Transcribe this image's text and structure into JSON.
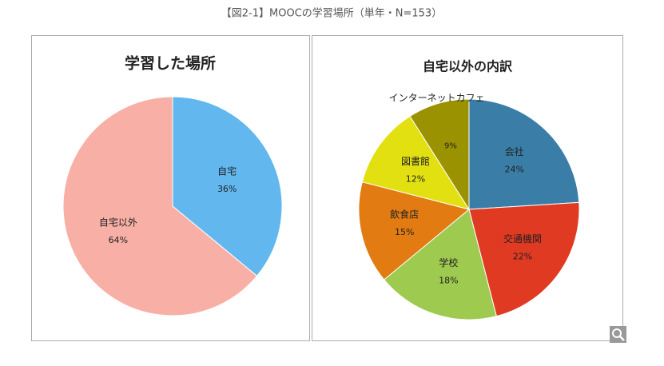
{
  "header": {
    "title": "【図2-1】MOOCの学習場所（単年・N=153）"
  },
  "chart_data": [
    {
      "type": "pie",
      "title": "学習した場所",
      "categories": [
        "自宅",
        "自宅以外"
      ],
      "values": [
        36,
        64
      ],
      "value_labels": [
        "36%",
        "64%"
      ],
      "colors": [
        "#62b8ee",
        "#f8b0a6"
      ]
    },
    {
      "type": "pie",
      "title": "自宅以外の内訳",
      "categories": [
        "会社",
        "交通機関",
        "学校",
        "飲食店",
        "図書館",
        "インターネットカフェ"
      ],
      "values": [
        24,
        22,
        18,
        15,
        12,
        9
      ],
      "value_labels": [
        "24%",
        "22%",
        "18%",
        "15%",
        "12%",
        "9%"
      ],
      "colors": [
        "#3a7ea8",
        "#e13a22",
        "#9fca50",
        "#e17b12",
        "#e2e010",
        "#9b9200"
      ]
    }
  ]
}
